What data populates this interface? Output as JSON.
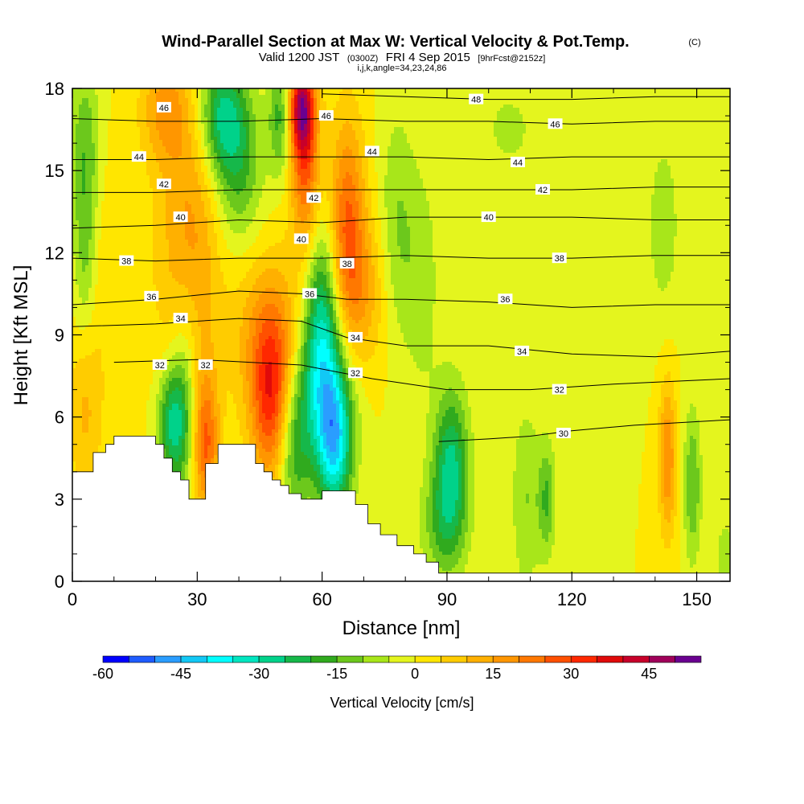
{
  "chart_data": {
    "type": "heatmap",
    "title": "Wind-Parallel Section at Max W: Vertical Velocity & Pot.Temp.",
    "title_mark": "(C)",
    "subtitle_main": "Valid 1200 JST",
    "subtitle_utc": "(0300Z)",
    "subtitle_date": "FRI 4 Sep 2015",
    "subtitle_fcst": "[9hrFcst@2152z]",
    "subtitle_indices": "i,j,k,angle=34,23,24,86",
    "xlabel": "Distance [nm]",
    "ylabel": "Height [Kft MSL]",
    "xlim": [
      0,
      158
    ],
    "ylim": [
      0,
      18
    ],
    "x_ticks": [
      0,
      30,
      60,
      90,
      120,
      150
    ],
    "y_ticks": [
      0,
      3,
      6,
      9,
      12,
      15,
      18
    ],
    "colorbar": {
      "label": "Vertical Velocity [cm/s]",
      "min": -60,
      "max": 55,
      "step": 5,
      "ticks": [
        -60,
        -45,
        -30,
        -15,
        0,
        15,
        30,
        45
      ],
      "colors": [
        "#0000ff",
        "#1f5cff",
        "#2a9dff",
        "#12c8f5",
        "#00ffff",
        "#00e6c0",
        "#00d28a",
        "#16b84a",
        "#30aa1e",
        "#6cc81c",
        "#a8e61a",
        "#e4f51e",
        "#ffe600",
        "#ffcc00",
        "#ffb000",
        "#ff9600",
        "#ff7800",
        "#ff5000",
        "#ff2800",
        "#e00a0a",
        "#c8002a",
        "#a0005a",
        "#6a0090"
      ]
    },
    "terrain_height_kft": [
      [
        0,
        4.0
      ],
      [
        5,
        4.7
      ],
      [
        8,
        5.0
      ],
      [
        10,
        5.3
      ],
      [
        19,
        5.3
      ],
      [
        20,
        5.0
      ],
      [
        22,
        4.5
      ],
      [
        24,
        4.0
      ],
      [
        26,
        3.7
      ],
      [
        28,
        3.0
      ],
      [
        32,
        4.3
      ],
      [
        35,
        5.0
      ],
      [
        42,
        5.0
      ],
      [
        44,
        4.3
      ],
      [
        46,
        4.0
      ],
      [
        48,
        3.7
      ],
      [
        50,
        3.5
      ],
      [
        52,
        3.2
      ],
      [
        55,
        3.0
      ],
      [
        60,
        3.3
      ],
      [
        65,
        3.3
      ],
      [
        68,
        2.8
      ],
      [
        71,
        2.1
      ],
      [
        74,
        1.7
      ],
      [
        78,
        1.3
      ],
      [
        82,
        1.0
      ],
      [
        85,
        0.7
      ],
      [
        88,
        0.3
      ],
      [
        158,
        0.3
      ],
      [
        158,
        0
      ]
    ],
    "theta_contours_C": [
      {
        "level": 30,
        "label_at": [
          118,
          5.4
        ],
        "profile": [
          [
            88,
            5.1
          ],
          [
            100,
            5.2
          ],
          [
            110,
            5.3
          ],
          [
            120,
            5.5
          ],
          [
            135,
            5.7
          ],
          [
            158,
            5.9
          ]
        ]
      },
      {
        "level": 32,
        "label_at": [
          117,
          7.0
        ],
        "profile": [
          [
            10,
            8.0
          ],
          [
            30,
            8.1
          ],
          [
            55,
            7.9
          ],
          [
            72,
            7.4
          ],
          [
            90,
            7.0
          ],
          [
            110,
            7.0
          ],
          [
            130,
            7.2
          ],
          [
            158,
            7.4
          ]
        ]
      },
      {
        "level": 34,
        "label_at": [
          108,
          8.4
        ],
        "profile": [
          [
            0,
            9.3
          ],
          [
            20,
            9.4
          ],
          [
            40,
            9.6
          ],
          [
            55,
            9.5
          ],
          [
            66,
            8.9
          ],
          [
            80,
            8.6
          ],
          [
            100,
            8.6
          ],
          [
            120,
            8.3
          ],
          [
            140,
            8.2
          ],
          [
            158,
            8.4
          ]
        ]
      },
      {
        "level": 36,
        "label_at": [
          104,
          10.3
        ],
        "profile": [
          [
            0,
            10.1
          ],
          [
            20,
            10.3
          ],
          [
            40,
            10.6
          ],
          [
            55,
            10.5
          ],
          [
            66,
            10.3
          ],
          [
            80,
            10.3
          ],
          [
            100,
            10.2
          ],
          [
            120,
            10.0
          ],
          [
            140,
            10.1
          ],
          [
            158,
            10.1
          ]
        ]
      },
      {
        "level": 38,
        "label_at": [
          117,
          11.8
        ],
        "profile": [
          [
            0,
            11.8
          ],
          [
            20,
            11.7
          ],
          [
            40,
            11.8
          ],
          [
            60,
            11.8
          ],
          [
            80,
            11.9
          ],
          [
            100,
            11.8
          ],
          [
            120,
            11.8
          ],
          [
            140,
            11.9
          ],
          [
            158,
            11.9
          ]
        ]
      },
      {
        "level": 40,
        "label_at": [
          100,
          13.3
        ],
        "profile": [
          [
            0,
            12.9
          ],
          [
            20,
            13.0
          ],
          [
            40,
            13.2
          ],
          [
            60,
            13.1
          ],
          [
            80,
            13.3
          ],
          [
            100,
            13.3
          ],
          [
            120,
            13.3
          ],
          [
            140,
            13.2
          ],
          [
            158,
            13.2
          ]
        ]
      },
      {
        "level": 42,
        "label_at": [
          113,
          14.3
        ],
        "profile": [
          [
            0,
            14.2
          ],
          [
            20,
            14.2
          ],
          [
            40,
            14.3
          ],
          [
            60,
            14.3
          ],
          [
            80,
            14.3
          ],
          [
            100,
            14.3
          ],
          [
            120,
            14.3
          ],
          [
            140,
            14.4
          ],
          [
            158,
            14.4
          ]
        ]
      },
      {
        "level": 44,
        "label_at": [
          107,
          15.3
        ],
        "profile": [
          [
            0,
            15.4
          ],
          [
            20,
            15.4
          ],
          [
            40,
            15.5
          ],
          [
            60,
            15.5
          ],
          [
            80,
            15.5
          ],
          [
            100,
            15.4
          ],
          [
            120,
            15.5
          ],
          [
            140,
            15.5
          ],
          [
            158,
            15.5
          ]
        ]
      },
      {
        "level": 46,
        "label_at": [
          116,
          16.7
        ],
        "profile": [
          [
            0,
            16.9
          ],
          [
            20,
            16.8
          ],
          [
            40,
            16.8
          ],
          [
            60,
            16.9
          ],
          [
            80,
            16.8
          ],
          [
            100,
            16.8
          ],
          [
            120,
            16.7
          ],
          [
            140,
            16.8
          ],
          [
            158,
            16.8
          ]
        ]
      },
      {
        "level": 48,
        "label_at": [
          97,
          17.6
        ],
        "profile": [
          [
            60,
            17.8
          ],
          [
            80,
            17.7
          ],
          [
            100,
            17.6
          ],
          [
            120,
            17.6
          ],
          [
            140,
            17.7
          ],
          [
            158,
            17.7
          ]
        ]
      }
    ],
    "extra_contour_labels": [
      {
        "text": "46",
        "at": [
          22,
          17.3
        ]
      },
      {
        "text": "46",
        "at": [
          61,
          17.0
        ]
      },
      {
        "text": "44",
        "at": [
          16,
          15.5
        ]
      },
      {
        "text": "44",
        "at": [
          72,
          15.7
        ]
      },
      {
        "text": "42",
        "at": [
          22,
          14.5
        ]
      },
      {
        "text": "42",
        "at": [
          58,
          14.0
        ]
      },
      {
        "text": "40",
        "at": [
          26,
          13.3
        ]
      },
      {
        "text": "40",
        "at": [
          55,
          12.5
        ]
      },
      {
        "text": "38",
        "at": [
          13,
          11.7
        ]
      },
      {
        "text": "38",
        "at": [
          66,
          11.6
        ]
      },
      {
        "text": "36",
        "at": [
          19,
          10.4
        ]
      },
      {
        "text": "36",
        "at": [
          57,
          10.5
        ]
      },
      {
        "text": "34",
        "at": [
          26,
          9.6
        ]
      },
      {
        "text": "34",
        "at": [
          68,
          8.9
        ]
      },
      {
        "text": "32",
        "at": [
          21,
          7.9
        ]
      },
      {
        "text": "32",
        "at": [
          32,
          7.9
        ]
      },
      {
        "text": "32",
        "at": [
          68,
          7.6
        ]
      }
    ],
    "velocity_field_cm_s": {
      "background": 0,
      "features": [
        {
          "x": 48,
          "y": 6.5,
          "value": 30,
          "sx": 3.5,
          "sy": 2.2
        },
        {
          "x": 47,
          "y": 9.0,
          "value": 15,
          "sx": 6,
          "sy": 2.2
        },
        {
          "x": 55,
          "y": 17.3,
          "value": 40,
          "sx": 2.2,
          "sy": 1.2
        },
        {
          "x": 56,
          "y": 15.0,
          "value": 25,
          "sx": 2.5,
          "sy": 2.2
        },
        {
          "x": 66,
          "y": 13.0,
          "value": 25,
          "sx": 3,
          "sy": 2.8
        },
        {
          "x": 70,
          "y": 10.5,
          "value": 12,
          "sx": 4,
          "sy": 2.0
        },
        {
          "x": 28,
          "y": 12.0,
          "value": 18,
          "sx": 5,
          "sy": 4.0
        },
        {
          "x": 32,
          "y": 5.0,
          "value": 25,
          "sx": 2.2,
          "sy": 1.8
        },
        {
          "x": 22,
          "y": 17.3,
          "value": 15,
          "sx": 4,
          "sy": 1.5
        },
        {
          "x": 8,
          "y": 11.0,
          "value": 5,
          "sx": 6,
          "sy": 3.0
        },
        {
          "x": 143,
          "y": 4.5,
          "value": 20,
          "sx": 1.5,
          "sy": 2.0
        },
        {
          "x": 3,
          "y": 6.0,
          "value": 10,
          "sx": 3,
          "sy": 2.0
        },
        {
          "x": 60,
          "y": 9.5,
          "value": -25,
          "sx": 3,
          "sy": 2.5
        },
        {
          "x": 53,
          "y": 5.0,
          "value": -20,
          "sx": 3,
          "sy": 2.0
        },
        {
          "x": 63,
          "y": 5.0,
          "value": -35,
          "sx": 3,
          "sy": 1.8
        },
        {
          "x": 60,
          "y": 7.0,
          "value": -18,
          "sx": 5,
          "sy": 2.0
        },
        {
          "x": 24,
          "y": 5.8,
          "value": -25,
          "sx": 2.5,
          "sy": 1.5
        },
        {
          "x": 27,
          "y": 7.0,
          "value": -15,
          "sx": 2.5,
          "sy": 3.0
        },
        {
          "x": 36,
          "y": 17.0,
          "value": -25,
          "sx": 4,
          "sy": 1.5
        },
        {
          "x": 40,
          "y": 15.0,
          "value": -15,
          "sx": 4,
          "sy": 2.0
        },
        {
          "x": 50,
          "y": 17.0,
          "value": -18,
          "sx": 2,
          "sy": 1.5
        },
        {
          "x": 3,
          "y": 15.5,
          "value": -15,
          "sx": 2.5,
          "sy": 2.5
        },
        {
          "x": 3,
          "y": 11.5,
          "value": -10,
          "sx": 2,
          "sy": 2.0
        },
        {
          "x": 91,
          "y": 4.3,
          "value": -25,
          "sx": 3,
          "sy": 2.0
        },
        {
          "x": 89,
          "y": 2.0,
          "value": -12,
          "sx": 4,
          "sy": 1.5
        },
        {
          "x": 109,
          "y": 3.0,
          "value": -10,
          "sx": 2.5,
          "sy": 2.5
        },
        {
          "x": 114,
          "y": 3.0,
          "value": -15,
          "sx": 1.5,
          "sy": 1.5
        },
        {
          "x": 149,
          "y": 3.5,
          "value": -15,
          "sx": 1.5,
          "sy": 2.0
        },
        {
          "x": 142,
          "y": 13.0,
          "value": -8,
          "sx": 3,
          "sy": 2.5
        },
        {
          "x": 78,
          "y": 13.0,
          "value": -10,
          "sx": 3,
          "sy": 3.0
        },
        {
          "x": 84,
          "y": 11.0,
          "value": -8,
          "sx": 3,
          "sy": 3.0
        },
        {
          "x": 105,
          "y": 16.5,
          "value": -6,
          "sx": 6,
          "sy": 1.5
        },
        {
          "x": 157,
          "y": 1.0,
          "value": -8,
          "sx": 2,
          "sy": 1.0
        }
      ]
    }
  }
}
